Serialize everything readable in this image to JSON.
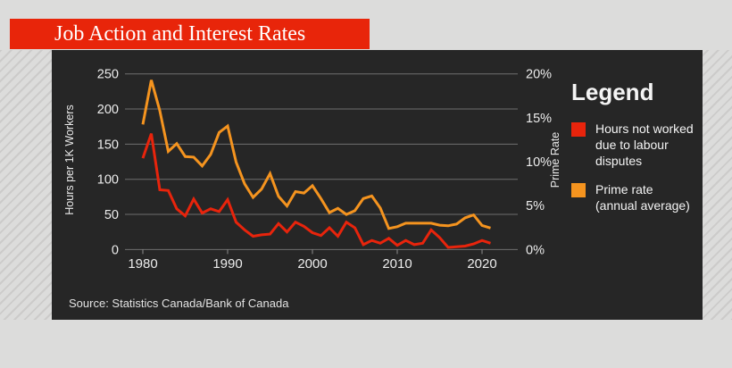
{
  "page": {
    "title": "Job Action and Interest Rates",
    "source": "Source: Statistics Canada/Bank of Canada"
  },
  "legend": {
    "title": "Legend",
    "items": [
      {
        "label": "Hours not worked due to labour disputes",
        "lines": [
          "Hours not worked",
          "due to labour",
          "disputes"
        ],
        "color": "#e8240c"
      },
      {
        "label": "Prime rate (annual average)",
        "lines": [
          "Prime rate",
          "(annual average)"
        ],
        "color": "#f5941f"
      }
    ]
  },
  "colors": {
    "banner": "#e8250a",
    "panel": "#262626",
    "background": "#dcdcdb",
    "gridline": "#6f6f6f",
    "axis_text": "#ececec",
    "hours_line": "#e8240c",
    "prime_line": "#f5941f"
  },
  "chart_data": {
    "type": "line",
    "x": [
      1980,
      1981,
      1982,
      1983,
      1984,
      1985,
      1986,
      1987,
      1988,
      1989,
      1990,
      1991,
      1992,
      1993,
      1994,
      1995,
      1996,
      1997,
      1998,
      1999,
      2000,
      2001,
      2002,
      2003,
      2004,
      2005,
      2006,
      2007,
      2008,
      2009,
      2010,
      2011,
      2012,
      2013,
      2014,
      2015,
      2016,
      2017,
      2018,
      2019,
      2020,
      2021
    ],
    "series": [
      {
        "name": "Hours not worked due to labour disputes",
        "axis": "left",
        "color": "#e8240c",
        "values": [
          130,
          165,
          85,
          84,
          58,
          48,
          72,
          52,
          58,
          54,
          71,
          39,
          28,
          19,
          21,
          22,
          37,
          25,
          39,
          33,
          24,
          20,
          31,
          19,
          39,
          31,
          7,
          13,
          9,
          16,
          6,
          13,
          7,
          9,
          28,
          17,
          3,
          4,
          5,
          8,
          13,
          9
        ]
      },
      {
        "name": "Prime rate (annual average)",
        "axis": "right",
        "color": "#f5941f",
        "values": [
          14.25,
          19.29,
          15.81,
          11.17,
          12.06,
          10.58,
          10.52,
          9.52,
          10.83,
          13.33,
          14.06,
          9.94,
          7.48,
          5.94,
          6.88,
          8.65,
          6.06,
          4.96,
          6.6,
          6.44,
          7.27,
          5.81,
          4.21,
          4.69,
          4.0,
          4.42,
          5.81,
          6.1,
          4.73,
          2.4,
          2.6,
          3.0,
          3.0,
          3.0,
          3.0,
          2.78,
          2.7,
          2.91,
          3.61,
          3.95,
          2.75,
          2.45
        ]
      }
    ],
    "left_axis": {
      "label": "Hours per 1K Workers",
      "ticks": [
        0,
        50,
        100,
        150,
        200,
        250
      ],
      "range": [
        0,
        250
      ]
    },
    "right_axis": {
      "label": "Prime Rate",
      "ticks": [
        "0%",
        "5%",
        "10%",
        "15%",
        "20%"
      ],
      "range": [
        0,
        20
      ]
    },
    "x_ticks": [
      1980,
      1990,
      2000,
      2010,
      2020
    ],
    "grid": true,
    "legend_position": "right",
    "title": "Job Action and Interest Rates"
  }
}
